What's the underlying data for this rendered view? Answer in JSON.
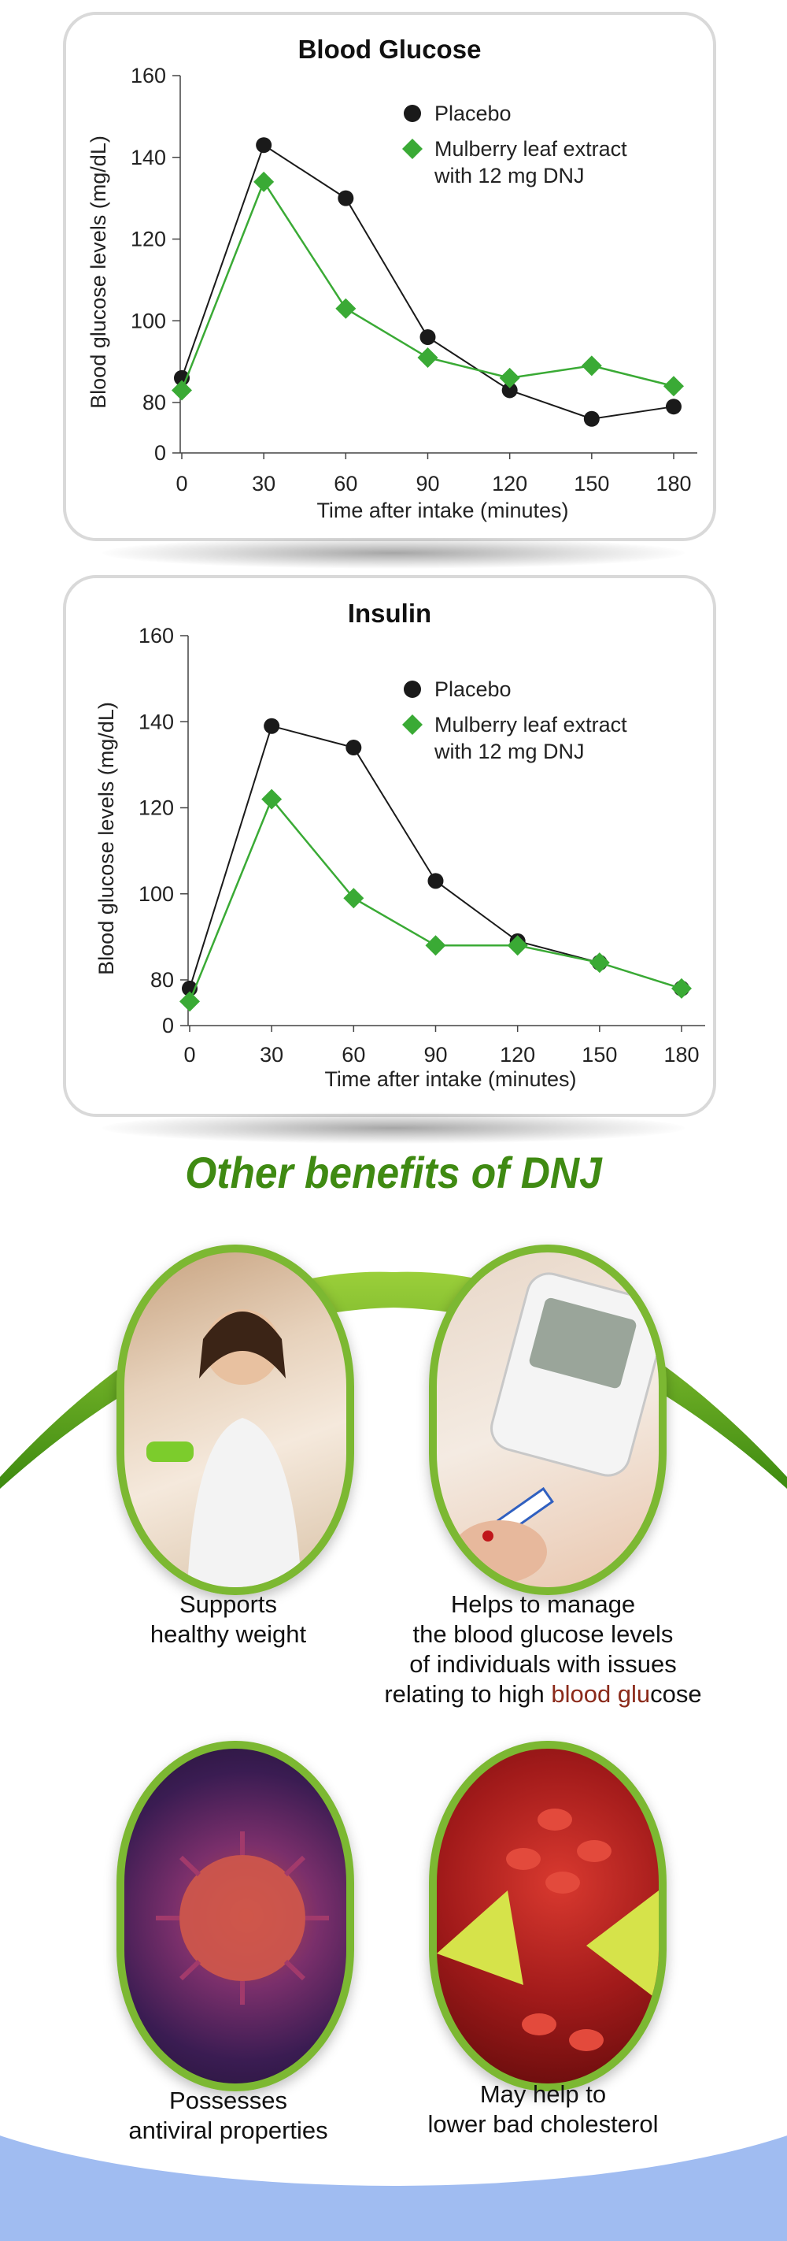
{
  "chart_data": [
    {
      "type": "line",
      "title": "Blood Glucose",
      "xlabel": "Time after intake (minutes)",
      "ylabel": "Blood glucose levels (mg/dL)",
      "x": [
        0,
        30,
        60,
        90,
        120,
        150,
        180
      ],
      "yticks": [
        0,
        80,
        100,
        120,
        140,
        160
      ],
      "ylim": [
        0,
        160
      ],
      "axis_break": true,
      "grid": false,
      "legend_position": "top-right",
      "series": [
        {
          "name": "Placebo",
          "marker": "circle",
          "color": "#1a1a1a",
          "values": [
            86,
            143,
            130,
            96,
            83,
            76,
            79
          ]
        },
        {
          "name": "Mulberry leaf extract with 12 mg DNJ",
          "marker": "diamond",
          "color": "#3aaa35",
          "values": [
            83,
            134,
            103,
            91,
            86,
            89,
            84
          ]
        }
      ]
    },
    {
      "type": "line",
      "title": "Insulin",
      "xlabel": "Time after intake (minutes)",
      "ylabel": "Blood glucose levels (mg/dL)",
      "x": [
        0,
        30,
        60,
        90,
        120,
        150,
        180
      ],
      "yticks": [
        0,
        80,
        100,
        120,
        140,
        160
      ],
      "ylim": [
        0,
        160
      ],
      "axis_break": true,
      "grid": false,
      "legend_position": "top-right",
      "series": [
        {
          "name": "Placebo",
          "marker": "circle",
          "color": "#1a1a1a",
          "values": [
            78,
            139,
            134,
            103,
            89,
            84,
            78
          ]
        },
        {
          "name": "Mulberry leaf extract with 12 mg DNJ",
          "marker": "diamond",
          "color": "#3aaa35",
          "values": [
            75,
            122,
            99,
            88,
            88,
            84,
            78
          ]
        }
      ]
    }
  ],
  "legend": {
    "placebo": "Placebo",
    "extract_line1": "Mulberry leaf extract",
    "extract_line2": "with 12 mg DNJ"
  },
  "section_title": "Other benefits of DNJ",
  "benefits": [
    {
      "lines": [
        "Supports",
        "healthy weight"
      ],
      "icon": "woman-with-dumbbell-photo"
    },
    {
      "lines": [
        "Helps to manage",
        "the blood glucose levels",
        "of individuals with issues"
      ],
      "last_line_pre": "relating to high ",
      "last_line_hl1": "blood glu",
      "last_line_post": "cose",
      "icon": "glucose-meter-photo"
    },
    {
      "lines": [
        "Possesses",
        "antiviral properties"
      ],
      "icon": "virus-photo"
    },
    {
      "lines": [
        "May help to",
        "lower bad cholesterol"
      ],
      "icon": "blood-vessel-cholesterol-photo"
    }
  ],
  "colors": {
    "accent_green": "#3f8a12",
    "placebo": "#1a1a1a",
    "extract": "#3aaa35"
  }
}
